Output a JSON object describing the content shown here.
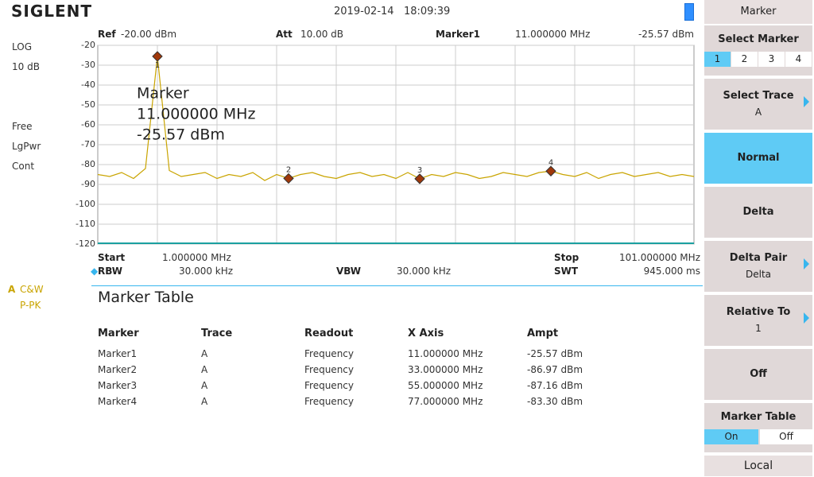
{
  "header": {
    "brand": "SIGLENT",
    "datetime": "2019-02-14   18:09:39"
  },
  "left_panel": {
    "scale": "LOG",
    "scale_div": "10 dB",
    "detector": [
      "Free",
      "LgPwr",
      "Cont"
    ],
    "trace": "A",
    "trace_mode": "C&W",
    "trace_det": "P-PK"
  },
  "top_bar": {
    "ref_label": "Ref",
    "ref": "-20.00 dBm",
    "att_label": "Att",
    "att": "10.00 dB",
    "marker_label": "Marker1",
    "marker_freq": "11.000000 MHz",
    "marker_ampt": "-25.57 dBm"
  },
  "chart_data": {
    "type": "line",
    "color": "#c9a400",
    "xlim": [
      1,
      101
    ],
    "ylim": [
      -120,
      -20
    ],
    "yticks": [
      -20,
      -30,
      -40,
      -50,
      -60,
      -70,
      -80,
      -90,
      -100,
      -110,
      -120
    ],
    "grid": true,
    "x": [
      1,
      3,
      5,
      7,
      9,
      11,
      13,
      15,
      17,
      19,
      21,
      23,
      25,
      27,
      29,
      31,
      33,
      35,
      37,
      39,
      41,
      43,
      45,
      47,
      49,
      51,
      53,
      55,
      57,
      59,
      61,
      63,
      65,
      67,
      69,
      71,
      73,
      75,
      77,
      79,
      81,
      83,
      85,
      87,
      89,
      91,
      93,
      95,
      97,
      99,
      101
    ],
    "values": [
      -85,
      -86,
      -84,
      -87,
      -82,
      -25.57,
      -83,
      -86,
      -85,
      -84,
      -87,
      -85,
      -86,
      -84,
      -88,
      -85,
      -86.97,
      -85,
      -84,
      -86,
      -87,
      -85,
      -84,
      -86,
      -85,
      -87,
      -84,
      -87.16,
      -85,
      -86,
      -84,
      -85,
      -87,
      -86,
      -84,
      -85,
      -86,
      -84,
      -83.3,
      -85,
      -86,
      -84,
      -87,
      -85,
      -84,
      -86,
      -85,
      -84,
      -86,
      -85,
      -86
    ],
    "markers": {
      "labels": [
        "1",
        "2",
        "3",
        "4"
      ],
      "x": [
        11,
        33,
        55,
        77
      ],
      "values": [
        -25.57,
        -86.97,
        -87.16,
        -83.3
      ]
    },
    "annotation": [
      "Marker",
      "11.000000 MHz",
      "-25.57 dBm"
    ]
  },
  "bottom_bar": {
    "start_label": "Start",
    "start": "1.000000 MHz",
    "stop_label": "Stop",
    "stop": "101.000000 MHz",
    "rbw_label": "RBW",
    "rbw": "30.000 kHz",
    "vbw_label": "VBW",
    "vbw": "30.000 kHz",
    "swt_label": "SWT",
    "swt": "945.000 ms"
  },
  "marker_table": {
    "title": "Marker Table",
    "headers": [
      "Marker",
      "Trace",
      "Readout",
      "X Axis",
      "Ampt"
    ],
    "rows": [
      [
        "Marker1",
        "A",
        "Frequency",
        "11.000000 MHz",
        "-25.57 dBm"
      ],
      [
        "Marker2",
        "A",
        "Frequency",
        "33.000000 MHz",
        "-86.97 dBm"
      ],
      [
        "Marker3",
        "A",
        "Frequency",
        "55.000000 MHz",
        "-87.16 dBm"
      ],
      [
        "Marker4",
        "A",
        "Frequency",
        "77.000000 MHz",
        "-83.30 dBm"
      ]
    ]
  },
  "softkeys": {
    "menu": "Marker",
    "select_marker": "Select Marker",
    "marker_tabs": [
      "1",
      "2",
      "3",
      "4"
    ],
    "select_trace": "Select Trace",
    "select_trace_value": "A",
    "normal": "Normal",
    "delta": "Delta",
    "delta_pair": "Delta Pair",
    "delta_pair_value": "Delta",
    "relative_to": "Relative To",
    "relative_to_value": "1",
    "off": "Off",
    "marker_table": "Marker Table",
    "table_on": "On",
    "table_off": "Off",
    "local": "Local"
  }
}
